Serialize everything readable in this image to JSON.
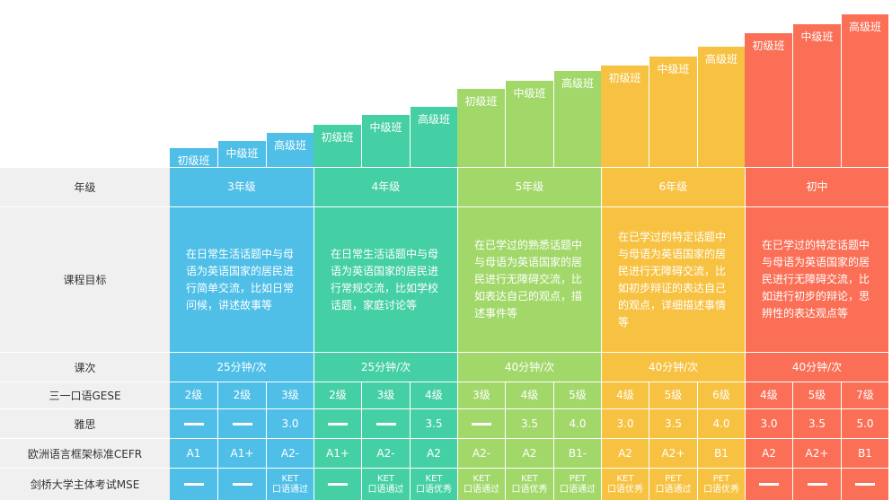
{
  "colors": {
    "g1": "#4fbfe8",
    "g2": "#45cfa5",
    "g3": "#a2d86a",
    "g4": "#f7c242",
    "g5": "#fa6f56",
    "label_bg": "#f0f0f0"
  },
  "row_labels": {
    "grade": "年级",
    "objective": "课程目标",
    "lesson": "课次",
    "gese": "三一口语GESE",
    "ielts": "雅思",
    "cefr": "欧洲语言框架标准CEFR",
    "mse": "剑桥大学主体考试MSE"
  },
  "groups": [
    {
      "grade": "3年级",
      "objective": "在日常生活话题中与母语为英语国家的居民进行简单交流，比如日常问候，讲述故事等",
      "lesson": "25分钟/次",
      "levels": [
        {
          "name": "初级班",
          "gese": "2级",
          "ielts": "—",
          "cefr": "A1",
          "mse1": "—",
          "mse2": ""
        },
        {
          "name": "中级班",
          "gese": "2级",
          "ielts": "—",
          "cefr": "A1+",
          "mse1": "—",
          "mse2": ""
        },
        {
          "name": "高级班",
          "gese": "3级",
          "ielts": "3.0",
          "cefr": "A2-",
          "mse1": "KET",
          "mse2": "口语通过"
        }
      ]
    },
    {
      "grade": "4年级",
      "objective": "在日常生活话题中与母语为英语国家的居民进行常规交流，比如学校话题，家庭讨论等",
      "lesson": "25分钟/次",
      "levels": [
        {
          "name": "初级班",
          "gese": "2级",
          "ielts": "—",
          "cefr": "A1+",
          "mse1": "—",
          "mse2": ""
        },
        {
          "name": "中级班",
          "gese": "3级",
          "ielts": "—",
          "cefr": "A2-",
          "mse1": "KET",
          "mse2": "口语通过"
        },
        {
          "name": "高级班",
          "gese": "4级",
          "ielts": "3.5",
          "cefr": "A2",
          "mse1": "KET",
          "mse2": "口语优秀"
        }
      ]
    },
    {
      "grade": "5年级",
      "objective": "在已学过的熟悉话题中与母语为英语国家的居民进行无障碍交流，比如表达自己的观点，描述事件等",
      "lesson": "40分钟/次",
      "levels": [
        {
          "name": "初级班",
          "gese": "3级",
          "ielts": "—",
          "cefr": "A2-",
          "mse1": "KET",
          "mse2": "口语通过"
        },
        {
          "name": "中级班",
          "gese": "4级",
          "ielts": "3.5",
          "cefr": "A2",
          "mse1": "KET",
          "mse2": "口语优秀"
        },
        {
          "name": "高级班",
          "gese": "5级",
          "ielts": "4.0",
          "cefr": "B1-",
          "mse1": "PET",
          "mse2": "口语通过"
        }
      ]
    },
    {
      "grade": "6年级",
      "objective": "在已学过的特定话题中与母语为英语国家的居民进行无障碍交流，比如初步辩证的表达自己的观点，详细描述事情等",
      "lesson": "40分钟/次",
      "levels": [
        {
          "name": "初级班",
          "gese": "4级",
          "ielts": "3.0",
          "cefr": "A2",
          "mse1": "KET",
          "mse2": "口语优秀"
        },
        {
          "name": "中级班",
          "gese": "5级",
          "ielts": "3.5",
          "cefr": "A2+",
          "mse1": "PET",
          "mse2": "口语通过"
        },
        {
          "name": "高级班",
          "gese": "6级",
          "ielts": "4.0",
          "cefr": "B1",
          "mse1": "PET",
          "mse2": "口语优秀"
        }
      ]
    },
    {
      "grade": "初中",
      "objective": "在已学过的特定话题中与母语为英语国家的居民进行无障碍交流，比如进行初步的辩论，思辨性的表达观点等",
      "lesson": "40分钟/次",
      "levels": [
        {
          "name": "初级班",
          "gese": "4级",
          "ielts": "3.0",
          "cefr": "A2",
          "mse1": "—",
          "mse2": ""
        },
        {
          "name": "中级班",
          "gese": "5级",
          "ielts": "3.5",
          "cefr": "A2+",
          "mse1": "—",
          "mse2": ""
        },
        {
          "name": "高级班",
          "gese": "7级",
          "ielts": "5.0",
          "cefr": "B1",
          "mse1": "—",
          "mse2": ""
        }
      ]
    }
  ]
}
